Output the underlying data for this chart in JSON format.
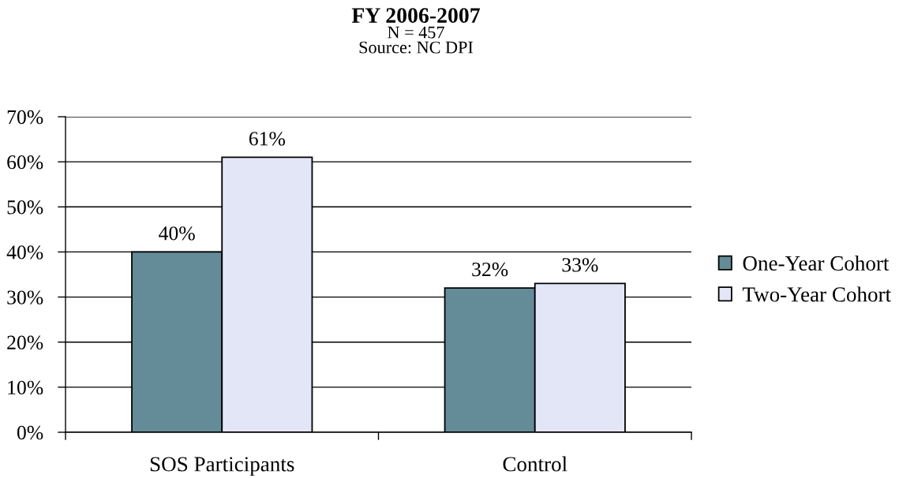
{
  "chart_data": {
    "type": "bar",
    "title": "FY 2006-2007",
    "subtitle": "N = 457",
    "annotations": [
      "Source: NC DPI"
    ],
    "categories": [
      "SOS Participants",
      "Control"
    ],
    "series": [
      {
        "name": "One-Year Cohort",
        "color": "#648c98",
        "values": [
          40,
          32
        ],
        "value_labels": [
          "40%",
          "32%"
        ]
      },
      {
        "name": "Two-Year Cohort",
        "color": "#e3e6f6",
        "values": [
          61,
          33
        ],
        "value_labels": [
          "61%",
          "33%"
        ]
      }
    ],
    "ylim": [
      0,
      70
    ],
    "yticks": [
      {
        "value": 0,
        "label": "0%"
      },
      {
        "value": 10,
        "label": "10%"
      },
      {
        "value": 20,
        "label": "20%"
      },
      {
        "value": 30,
        "label": "30%"
      },
      {
        "value": 40,
        "label": "40%"
      },
      {
        "value": 50,
        "label": "50%"
      },
      {
        "value": 60,
        "label": "60%"
      },
      {
        "value": 70,
        "label": "70%"
      }
    ],
    "grid": "y",
    "legend": "right"
  }
}
